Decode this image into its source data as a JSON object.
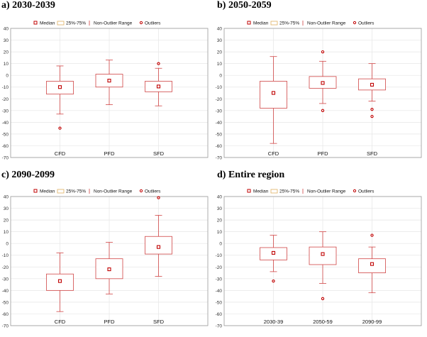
{
  "legend": {
    "median": "Median",
    "iqr": "25%-75%",
    "range": "Non-Outlier Range",
    "outliers": "Outliers"
  },
  "colors": {
    "box": "#d04545",
    "marker": "#c00000",
    "grid": "#e6e6e6",
    "axis": "#9a9a9a"
  },
  "chart_data": [
    {
      "type": "boxplot",
      "label": "a) 2030-2039",
      "ylim": [
        -70,
        40
      ],
      "yticks": [
        40,
        30,
        20,
        10,
        0,
        -10,
        -20,
        -30,
        -40,
        -50,
        -60,
        -70
      ],
      "categories": [
        "CFD",
        "PFD",
        "SFD"
      ],
      "boxes": [
        {
          "median": -10,
          "q1": -16,
          "q3": -5,
          "min": -33,
          "max": 8,
          "outliers": [
            -45
          ]
        },
        {
          "median": -4.5,
          "q1": -10,
          "q3": 1,
          "min": -25,
          "max": 13,
          "outliers": []
        },
        {
          "median": -9.5,
          "q1": -14,
          "q3": -5,
          "min": -26,
          "max": 6,
          "outliers": [
            10
          ]
        }
      ]
    },
    {
      "type": "boxplot",
      "label": "b) 2050-2059",
      "ylim": [
        -70,
        40
      ],
      "yticks": [
        40,
        30,
        20,
        10,
        0,
        -10,
        -20,
        -30,
        -40,
        -50,
        -60,
        -70
      ],
      "categories": [
        "CFD",
        "PFD",
        "SFD"
      ],
      "boxes": [
        {
          "median": -15,
          "q1": -28,
          "q3": -5,
          "min": -58,
          "max": 16,
          "outliers": []
        },
        {
          "median": -6.5,
          "q1": -11,
          "q3": -1,
          "min": -24,
          "max": 12,
          "outliers": [
            20,
            -30
          ]
        },
        {
          "median": -8,
          "q1": -12.5,
          "q3": -3,
          "min": -22,
          "max": 10,
          "outliers": [
            -29,
            -35
          ]
        }
      ]
    },
    {
      "type": "boxplot",
      "label": "c) 2090-2099",
      "ylim": [
        -70,
        40
      ],
      "yticks": [
        40,
        30,
        20,
        10,
        0,
        -10,
        -20,
        -30,
        -40,
        -50,
        -60,
        -70
      ],
      "categories": [
        "CFD",
        "PFD",
        "SFD"
      ],
      "boxes": [
        {
          "median": -32,
          "q1": -40,
          "q3": -26,
          "min": -58,
          "max": -8,
          "outliers": []
        },
        {
          "median": -22,
          "q1": -30,
          "q3": -13,
          "min": -43,
          "max": 1,
          "outliers": []
        },
        {
          "median": -3,
          "q1": -9,
          "q3": 6,
          "min": -28,
          "max": 24,
          "outliers": [
            39
          ]
        }
      ]
    },
    {
      "type": "boxplot",
      "label": "d) Entire region",
      "ylim": [
        -70,
        40
      ],
      "yticks": [
        40,
        30,
        20,
        10,
        0,
        -10,
        -20,
        -30,
        -40,
        -50,
        -60,
        -70
      ],
      "categories": [
        "2030-39",
        "2050-59",
        "2090-99"
      ],
      "boxes": [
        {
          "median": -8,
          "q1": -14,
          "q3": -3.5,
          "min": -24,
          "max": 7,
          "outliers": [
            -32
          ]
        },
        {
          "median": -9,
          "q1": -18,
          "q3": -3,
          "min": -34,
          "max": 10,
          "outliers": [
            -47
          ]
        },
        {
          "median": -17.5,
          "q1": -25,
          "q3": -13,
          "min": -42,
          "max": -3,
          "outliers": [
            7
          ]
        }
      ]
    }
  ]
}
